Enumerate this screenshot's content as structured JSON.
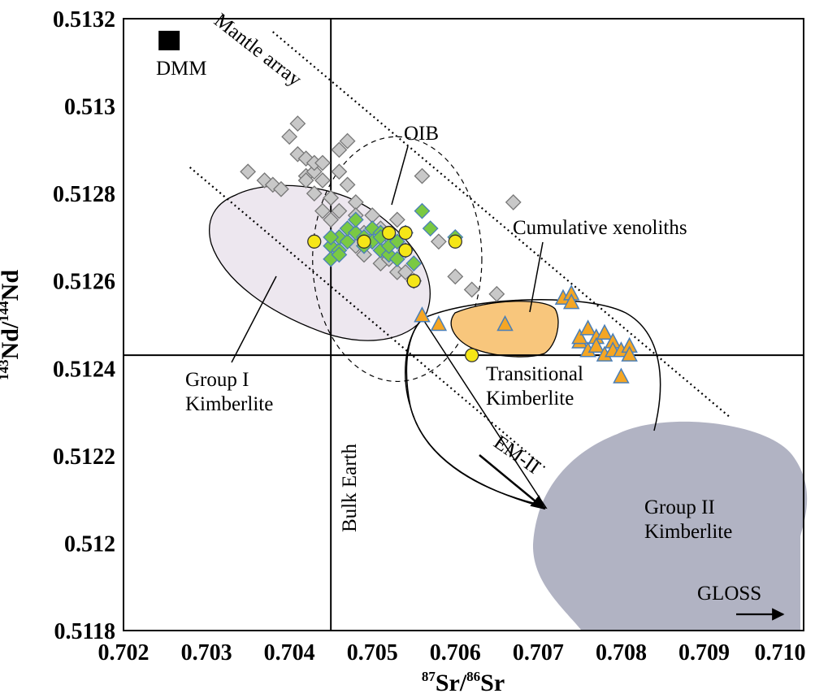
{
  "chart_data": {
    "type": "scatter",
    "title": "",
    "xlabel": {
      "sup": "87",
      "main1": "Sr/",
      "sup2": "86",
      "main2": "Sr"
    },
    "ylabel": {
      "sup": "143",
      "main1": "Nd/",
      "sup2": "144",
      "main2": "Nd"
    },
    "xlim": [
      0.702,
      0.7102
    ],
    "ylim": [
      0.5118,
      0.5132
    ],
    "x_ticks": [
      "0.702",
      "0.703",
      "0.704",
      "0.705",
      "0.706",
      "0.707",
      "0.708",
      "0.709",
      "0.710"
    ],
    "y_ticks": [
      "0.5118",
      "0.512",
      "0.5122",
      "0.5124",
      "0.5126",
      "0.5128",
      "0.513",
      "0.5132"
    ],
    "reference_lines": {
      "bulk_earth_sr": 0.7045,
      "bulk_earth_nd": 0.51243,
      "bulk_earth_label": "Bulk Earth"
    },
    "mantle_array_label": "Mantle array",
    "mantle_array_lines": [
      {
        "x": [
          0.7038,
          0.7093
        ],
        "y": [
          0.51317,
          0.51229
        ]
      },
      {
        "x": [
          0.7028,
          0.7071
        ],
        "y": [
          0.51286,
          0.51217
        ]
      }
    ],
    "fields": [
      {
        "name": "oib",
        "label": "OIB",
        "color": "none",
        "stroke": "dashed",
        "center": [
          0.7053,
          0.51265
        ],
        "radii": [
          0.00102,
          0.00028
        ],
        "rotation_deg": 0
      },
      {
        "name": "group-i",
        "label": "Group I\nKimberlite",
        "color": "#ede7ef",
        "stroke": "solid"
      },
      {
        "name": "transitional",
        "label": "Transitional\nKimberlite",
        "color": "none",
        "stroke": "solid"
      },
      {
        "name": "group-ii",
        "label": "Group II\nKimberlite",
        "color": "#b1b3c3",
        "stroke": "none"
      },
      {
        "name": "cumulative",
        "label": "Cumulative xenoliths",
        "color": "#f8c67c",
        "stroke": "solid"
      }
    ],
    "annotations": {
      "dmm": "DMM",
      "gloss": "GLOSS",
      "em_ii": "EM-II"
    },
    "dmm_point": {
      "x": 0.70255,
      "y": 0.51315
    },
    "series": [
      {
        "name": "",
        "marker": "diamond",
        "color": "#c8c8c8",
        "x": [
          0.7035,
          0.7037,
          0.7038,
          0.7039,
          0.704,
          0.7041,
          0.7041,
          0.7042,
          0.7042,
          0.7043,
          0.7043,
          0.7044,
          0.7044,
          0.7045,
          0.7045,
          0.7046,
          0.7046,
          0.7047,
          0.7047,
          0.7048,
          0.7048,
          0.7049,
          0.7049,
          0.705,
          0.705,
          0.7051,
          0.7051,
          0.7052,
          0.7052,
          0.7053,
          0.7053,
          0.7054,
          0.7054,
          0.7055,
          0.7056,
          0.7058,
          0.706,
          0.7062,
          0.7065,
          0.7067,
          0.7042,
          0.7043,
          0.7046,
          0.7048,
          0.7044
        ],
        "y": [
          0.51285,
          0.51283,
          0.51282,
          0.51281,
          0.51293,
          0.51289,
          0.51296,
          0.51288,
          0.51284,
          0.51285,
          0.51287,
          0.51283,
          0.51276,
          0.51279,
          0.51274,
          0.51276,
          0.51285,
          0.51292,
          0.51282,
          0.51278,
          0.51268,
          0.51266,
          0.51271,
          0.51275,
          0.51269,
          0.51264,
          0.51272,
          0.5127,
          0.51265,
          0.51262,
          0.51274,
          0.51267,
          0.51262,
          0.5126,
          0.51284,
          0.51269,
          0.51261,
          0.51258,
          0.51257,
          0.51278,
          0.51283,
          0.5128,
          0.5129,
          0.51275,
          0.51287
        ]
      },
      {
        "name": "",
        "marker": "diamond",
        "color": "#7ac943",
        "x": [
          0.7045,
          0.7045,
          0.7046,
          0.7046,
          0.7047,
          0.7047,
          0.7048,
          0.7048,
          0.7049,
          0.7049,
          0.705,
          0.705,
          0.7051,
          0.7051,
          0.7052,
          0.7052,
          0.7053,
          0.7053,
          0.7054,
          0.7054,
          0.7055,
          0.7056,
          0.7057,
          0.706,
          0.7045,
          0.7046,
          0.7049,
          0.7051
        ],
        "y": [
          0.51268,
          0.51265,
          0.51267,
          0.5127,
          0.51269,
          0.51272,
          0.51271,
          0.51274,
          0.5127,
          0.51268,
          0.51272,
          0.51269,
          0.51271,
          0.51267,
          0.51266,
          0.51268,
          0.51265,
          0.51269,
          0.51267,
          0.51271,
          0.51264,
          0.51276,
          0.51272,
          0.5127,
          0.5127,
          0.51266,
          0.51268,
          0.5127
        ]
      },
      {
        "name": "",
        "marker": "circle",
        "color": "#f5e617",
        "x": [
          0.7043,
          0.7049,
          0.7052,
          0.7054,
          0.7054,
          0.7055,
          0.706,
          0.7062
        ],
        "y": [
          0.51269,
          0.51269,
          0.51271,
          0.51271,
          0.51267,
          0.5126,
          0.51269,
          0.51243
        ]
      },
      {
        "name": "",
        "marker": "triangle",
        "color": "#f5a623",
        "x": [
          0.7056,
          0.7058,
          0.7066,
          0.7073,
          0.7074,
          0.7074,
          0.7075,
          0.7075,
          0.7076,
          0.7076,
          0.7077,
          0.7077,
          0.7078,
          0.7078,
          0.7079,
          0.7079,
          0.708,
          0.708,
          0.7081,
          0.7081
        ],
        "y": [
          0.51252,
          0.5125,
          0.5125,
          0.51256,
          0.51257,
          0.51255,
          0.51246,
          0.51247,
          0.51244,
          0.51249,
          0.51247,
          0.51245,
          0.51248,
          0.51243,
          0.51246,
          0.51244,
          0.51244,
          0.51238,
          0.51245,
          0.51243
        ]
      }
    ]
  }
}
